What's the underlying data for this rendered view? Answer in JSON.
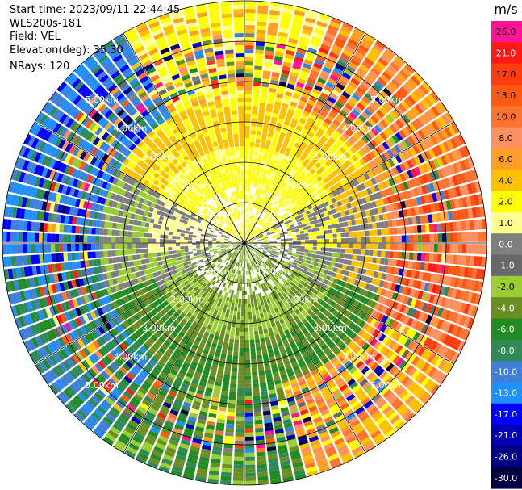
{
  "header": {
    "start_time": "Start time: 2023/09/11 22:44:45",
    "instrument": "WLS200s-181",
    "field": "Field: VEL",
    "elevation": "Elevation(deg): 35.30",
    "nrays": "NRays: 120"
  },
  "chart_data": {
    "type": "heatmap",
    "projection": "polar-ppi",
    "field": "VEL",
    "nrays": 120,
    "range_unit": "km",
    "range_max_km": 6.0,
    "range_rings_km": [
      1.0,
      2.0,
      3.0,
      4.0,
      5.0,
      6.0
    ],
    "range_ring_labels": [
      "1.00km",
      "2.00km",
      "3.00km",
      "4.00km",
      "5.00km"
    ],
    "colorbar": {
      "unit": "m/s",
      "ticks": [
        "26.0",
        "21.0",
        "17.0",
        "13.0",
        "10.0",
        "8.0",
        "6.0",
        "4.0",
        "2.0",
        "1.0",
        "0.0",
        "-1.0",
        "-2.0",
        "-4.0",
        "-6.0",
        "-8.0",
        "-10.0",
        "-13.0",
        "-17.0",
        "-21.0",
        "-26.0",
        "-30.0"
      ],
      "colors": [
        "#ff1493",
        "#ff1a1a",
        "#ff3b10",
        "#ff5a14",
        "#ff7330",
        "#ff9060",
        "#ffa024",
        "#ffc000",
        "#ffff00",
        "#ffff8c",
        "#7f7f7f",
        "#686868",
        "#9acd32",
        "#6b8e23",
        "#228b22",
        "#2e8b57",
        "#3f7fd6",
        "#1e90ff",
        "#0000ff",
        "#0000b0",
        "#000080",
        "#000040"
      ]
    }
  }
}
